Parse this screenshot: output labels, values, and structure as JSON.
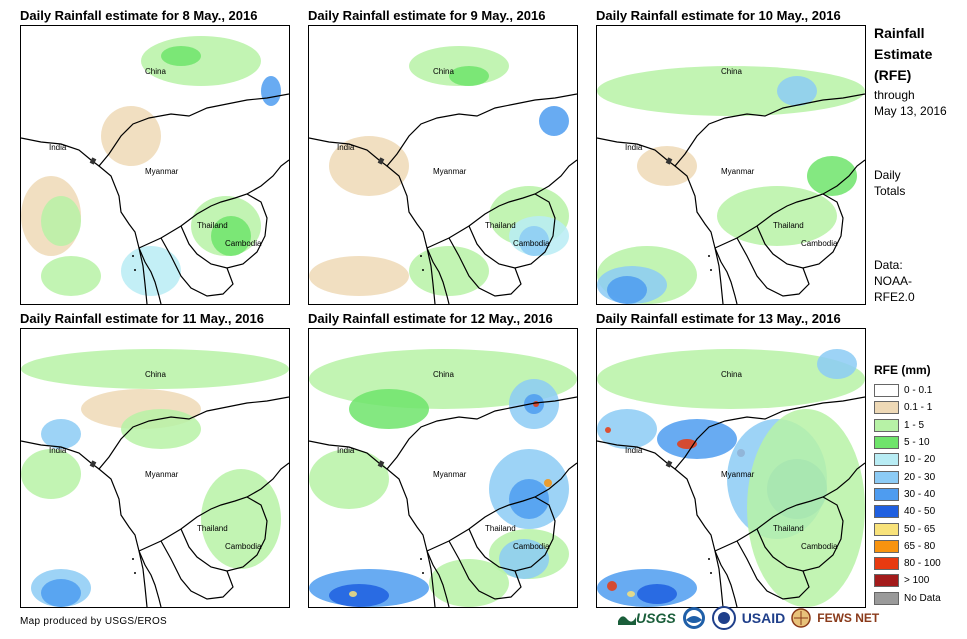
{
  "panels": [
    {
      "title": "Daily Rainfall estimate for 8 May., 2016",
      "labels": {
        "china": "China",
        "india": "India",
        "myanmar": "Myanmar",
        "thailand": "Thailand",
        "cambodia": "Cambodia"
      }
    },
    {
      "title": "Daily Rainfall estimate for 9 May., 2016",
      "labels": {
        "china": "China",
        "india": "India",
        "myanmar": "Myanmar",
        "thailand": "Thailand",
        "cambodia": "Cambodia"
      }
    },
    {
      "title": "Daily Rainfall estimate for 10 May., 2016",
      "labels": {
        "china": "China",
        "india": "India",
        "myanmar": "Myanmar",
        "thailand": "Thailand",
        "cambodia": "Cambodia"
      }
    },
    {
      "title": "Daily Rainfall estimate for 11 May., 2016",
      "labels": {
        "china": "China",
        "india": "India",
        "myanmar": "Myanmar",
        "thailand": "Thailand",
        "cambodia": "Cambodia"
      }
    },
    {
      "title": "Daily Rainfall estimate for 12 May., 2016",
      "labels": {
        "china": "China",
        "india": "India",
        "myanmar": "Myanmar",
        "thailand": "Thailand",
        "cambodia": "Cambodia"
      }
    },
    {
      "title": "Daily Rainfall estimate for 13 May., 2016",
      "labels": {
        "china": "China",
        "india": "India",
        "myanmar": "Myanmar",
        "thailand": "Thailand",
        "cambodia": "Cambodia"
      }
    }
  ],
  "side": {
    "line1": "Rainfall",
    "line2": "Estimate",
    "line3": "(RFE)",
    "line4": "through",
    "line5": "May 13, 2016",
    "daily1": "Daily",
    "daily2": "Totals",
    "data1": "Data:",
    "data2": "NOAA-",
    "data3": "RFE2.0"
  },
  "legend": {
    "title": "RFE (mm)",
    "items": [
      {
        "label": "0 - 0.1",
        "color": "#ffffff"
      },
      {
        "label": "0.1 - 1",
        "color": "#eed9b6"
      },
      {
        "label": "1 - 5",
        "color": "#b7f2a6"
      },
      {
        "label": "5 - 10",
        "color": "#6fe46b"
      },
      {
        "label": "10 - 20",
        "color": "#b8ecf4"
      },
      {
        "label": "20 - 30",
        "color": "#8ccbf5"
      },
      {
        "label": "30 - 40",
        "color": "#4e9cf0"
      },
      {
        "label": "40 - 50",
        "color": "#1f5fe0"
      },
      {
        "label": "50 - 65",
        "color": "#f8e27a"
      },
      {
        "label": "65 - 80",
        "color": "#f7930f"
      },
      {
        "label": "80 - 100",
        "color": "#e83a10"
      },
      {
        "label": "> 100",
        "color": "#a31b1b"
      },
      {
        "label": "No Data",
        "color": "#9a9a9a"
      }
    ]
  },
  "credit": "Map produced by USGS/EROS",
  "logos": {
    "usgs": "USGS",
    "usaid": "USAID",
    "fews": "FEWS NET"
  }
}
